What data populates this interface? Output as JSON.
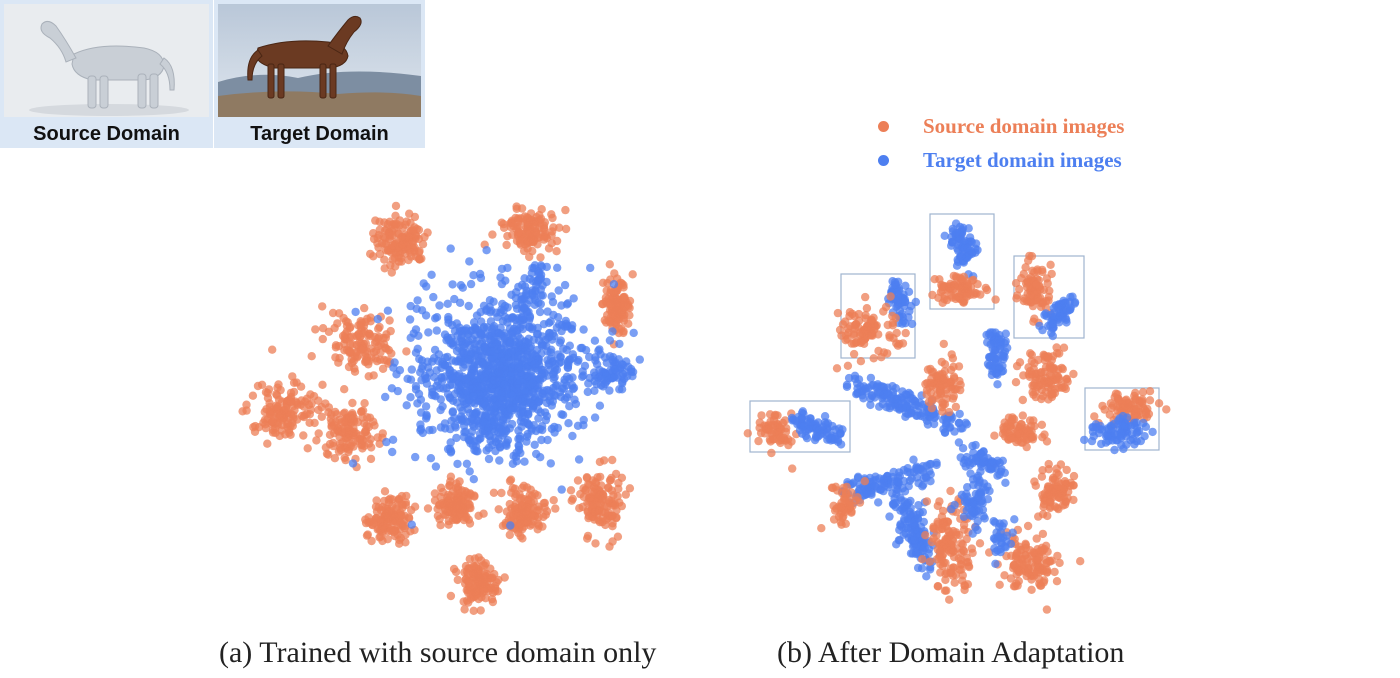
{
  "legend": {
    "source_label": "Source domain images",
    "target_label": "Target domain images",
    "source_color": "#ec7f57",
    "target_color": "#4d7ff0"
  },
  "domains": {
    "source_label": "Source Domain",
    "target_label": "Target Domain"
  },
  "captions": {
    "a": "(a) Trained with source domain only",
    "b": "(b) After Domain Adaptation"
  },
  "icons": [
    "horse-3d-model-icon",
    "horse-photo-icon"
  ]
}
